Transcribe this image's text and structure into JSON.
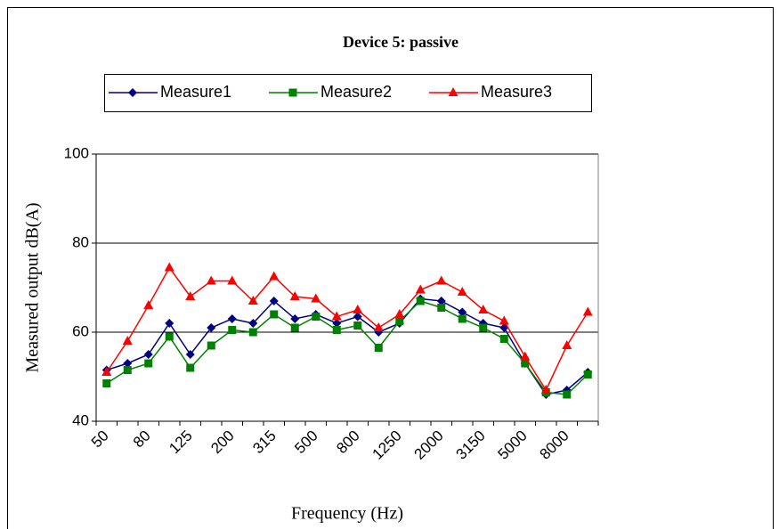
{
  "chart_data": {
    "type": "line",
    "title": "Device 5: passive",
    "xlabel": "Frequency (Hz)",
    "ylabel": "Measured output dB(A)",
    "categories": [
      "50",
      null,
      "80",
      null,
      "125",
      null,
      "200",
      null,
      "315",
      null,
      "500",
      null,
      "800",
      null,
      "1250",
      null,
      "2000",
      null,
      "3150",
      null,
      "5000",
      null,
      "8000",
      null
    ],
    "series": [
      {
        "name": "Measure1",
        "color": "#000080",
        "marker": "diamond",
        "values": [
          51.5,
          53,
          55,
          62,
          55,
          61,
          63,
          62,
          67,
          63,
          64,
          62,
          63.5,
          60,
          62,
          67.5,
          67,
          64.5,
          62,
          61,
          53,
          46,
          47,
          51
        ]
      },
      {
        "name": "Measure2",
        "color": "#008000",
        "marker": "square",
        "values": [
          48.5,
          51.5,
          53,
          59,
          52,
          57,
          60.5,
          60,
          64,
          61,
          63.5,
          60.5,
          61.5,
          56.5,
          62.5,
          67,
          65.5,
          63,
          61,
          58.5,
          53,
          46.5,
          46,
          50.5
        ]
      },
      {
        "name": "Measure3",
        "color": "#ff0000",
        "marker": "triangle",
        "values": [
          51,
          58,
          66,
          74.5,
          68,
          71.5,
          71.5,
          67,
          72.5,
          68,
          67.5,
          63.5,
          65,
          61,
          64,
          69.5,
          71.5,
          69,
          65,
          62.5,
          54.5,
          47,
          57,
          64.5
        ]
      }
    ],
    "ylim": [
      40,
      100
    ],
    "yticks": [
      40,
      60,
      80,
      100
    ],
    "grid": true,
    "legend": "top"
  }
}
